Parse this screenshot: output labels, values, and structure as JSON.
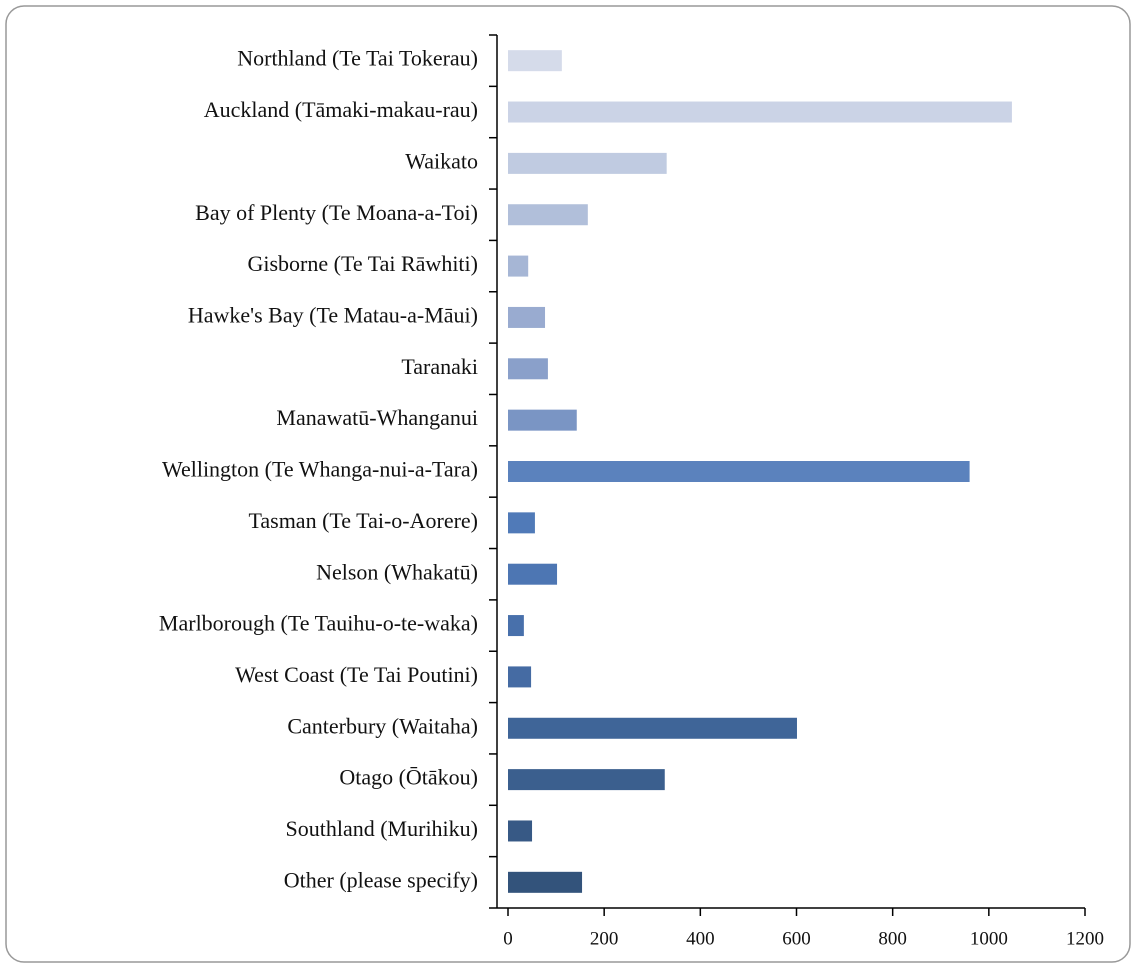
{
  "chart_data": {
    "type": "barh",
    "categories": [
      "Northland (Te Tai Tokerau)",
      "Auckland (Tāmaki-makau-rau)",
      "Waikato",
      "Bay of Plenty (Te Moana-a-Toi)",
      "Gisborne (Te Tai Rāwhiti)",
      "Hawke's Bay (Te Matau-a-Māui)",
      "Taranaki",
      "Manawatū-Whanganui",
      "Wellington (Te Whanga-nui-a-Tara)",
      "Tasman (Te Tai-o-Aorere)",
      "Nelson (Whakatū)",
      "Marlborough (Te Tauihu-o-te-waka)",
      "West Coast (Te Tai Poutini)",
      "Canterbury (Waitaha)",
      "Otago (Ōtākou)",
      "Southland (Murihiku)",
      "Other (please specify)"
    ],
    "values": [
      112,
      1048,
      330,
      166,
      42,
      77,
      83,
      143,
      960,
      56,
      102,
      33,
      48,
      601,
      326,
      50,
      154
    ],
    "colors": [
      "#d5dbea",
      "#cbd3e6",
      "#c0cbe1",
      "#b1bfda",
      "#a6b6d5",
      "#99abd0",
      "#8aa0ca",
      "#7a95c4",
      "#5b82bd",
      "#507ab8",
      "#4d76b3",
      "#4870ab",
      "#456ba3",
      "#3f6598",
      "#3b5f8e",
      "#375985",
      "#33537b"
    ],
    "xlim": [
      0,
      1200
    ],
    "xticks": [
      0,
      200,
      400,
      600,
      800,
      1000,
      1200
    ],
    "grid": false
  }
}
